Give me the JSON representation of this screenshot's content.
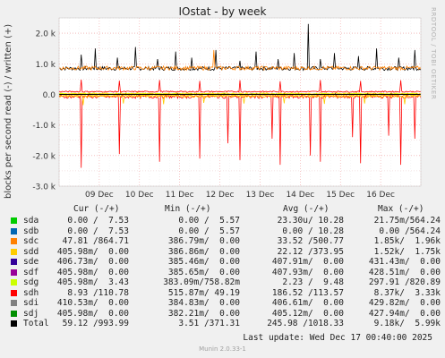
{
  "title": "IOstat - by week",
  "side_text": "RRDTOOL / TOBI OETIKER",
  "footer": {
    "last_update": "Last update:  Wed Dec 17 00:40:00 2025",
    "munin": "Munin 2.0.33-1"
  },
  "legend": {
    "headers": [
      "Cur (-/+)",
      "Min (-/+)",
      "Avg (-/+)",
      "Max (-/+)"
    ],
    "rows": [
      {
        "name": "sda",
        "color": "#00cc00",
        "cur": "0.00 /  7.53",
        "min": "0.00 /  5.57",
        "avg": "23.30u/ 10.28",
        "max": "21.75m/564.24"
      },
      {
        "name": "sdb",
        "color": "#0066b3",
        "cur": "0.00 /  7.53",
        "min": "0.00 /  5.57",
        "avg": "0.00 / 10.28",
        "max": "0.00 /564.24"
      },
      {
        "name": "sdc",
        "color": "#ff8000",
        "cur": "47.81 /864.71",
        "min": "386.79m/  0.00",
        "avg": "33.52 /500.77",
        "max": "1.85k/  1.96k"
      },
      {
        "name": "sdd",
        "color": "#ffcc00",
        "cur": "405.98m/  0.00",
        "min": "386.86m/  0.00",
        "avg": "22.12 /373.95",
        "max": "1.52k/  1.75k"
      },
      {
        "name": "sde",
        "color": "#330099",
        "cur": "406.73m/  0.00",
        "min": "385.46m/  0.00",
        "avg": "407.91m/  0.00",
        "max": "431.43m/  0.00"
      },
      {
        "name": "sdf",
        "color": "#990099",
        "cur": "405.98m/  0.00",
        "min": "385.65m/  0.00",
        "avg": "407.93m/  0.00",
        "max": "428.51m/  0.00"
      },
      {
        "name": "sdg",
        "color": "#ccff00",
        "cur": "405.98m/  3.43",
        "min": "383.09m/758.82m",
        "avg": "2.23 /  9.48",
        "max": "297.91 /820.89"
      },
      {
        "name": "sdh",
        "color": "#ff0000",
        "cur": "8.93 /110.78",
        "min": "515.87m/ 49.19",
        "avg": "186.52 /113.57",
        "max": "8.37k/  3.33k"
      },
      {
        "name": "sdi",
        "color": "#808080",
        "cur": "410.53m/  0.00",
        "min": "384.83m/  0.00",
        "avg": "406.61m/  0.00",
        "max": "429.82m/  0.00"
      },
      {
        "name": "sdj",
        "color": "#008f00",
        "cur": "405.98m/  0.00",
        "min": "382.21m/  0.00",
        "avg": "405.12m/  0.00",
        "max": "427.94m/  0.00"
      },
      {
        "name": "Total",
        "color": "#000000",
        "cur": "59.12 /993.99",
        "min": "3.51 /371.31",
        "avg": "245.98 /1018.33",
        "max": "9.18k/  5.99k"
      }
    ]
  },
  "chart_data": {
    "type": "line",
    "title": "IOstat - by week",
    "ylabel": "blocks per second read (-) / written (+)",
    "ylim": [
      -3000,
      2500
    ],
    "y_ticks": [
      {
        "value": 2000,
        "label": "2.0 k"
      },
      {
        "value": 1000,
        "label": "1.0 k"
      },
      {
        "value": 0,
        "label": "0.0"
      },
      {
        "value": -1000,
        "label": "-1.0 k"
      },
      {
        "value": -2000,
        "label": "-2.0 k"
      },
      {
        "value": -3000,
        "label": "-3.0 k"
      }
    ],
    "x_ticks": [
      "09 Dec",
      "10 Dec",
      "11 Dec",
      "12 Dec",
      "13 Dec",
      "14 Dec",
      "15 Dec",
      "16 Dec"
    ],
    "x_range_days": [
      8.0,
      17.0
    ],
    "grid": true,
    "series": [
      {
        "name": "Total",
        "color": "#000000",
        "write_baseline": 850,
        "write_spikes": [
          [
            8.55,
            1300
          ],
          [
            8.9,
            1500
          ],
          [
            9.45,
            1200
          ],
          [
            9.9,
            1550
          ],
          [
            10.45,
            1150
          ],
          [
            10.9,
            1400
          ],
          [
            11.3,
            1200
          ],
          [
            11.9,
            1450
          ],
          [
            12.5,
            1100
          ],
          [
            12.9,
            1400
          ],
          [
            13.45,
            1150
          ],
          [
            13.85,
            1350
          ],
          [
            14.2,
            2300
          ],
          [
            14.5,
            1150
          ],
          [
            14.85,
            1350
          ],
          [
            15.45,
            1250
          ],
          [
            15.9,
            1500
          ],
          [
            16.45,
            1200
          ],
          [
            16.85,
            1450
          ]
        ],
        "read_baseline": 10
      },
      {
        "name": "sdc",
        "color": "#ff8000",
        "write_baseline": 860,
        "write_spikes": [
          [
            11.85,
            1450
          ]
        ],
        "read_baseline": -40
      },
      {
        "name": "sdh",
        "color": "#ff0000",
        "write_baseline": 90,
        "write_spikes": [
          [
            8.55,
            480
          ],
          [
            9.5,
            450
          ],
          [
            10.5,
            470
          ],
          [
            11.5,
            440
          ],
          [
            12.5,
            460
          ],
          [
            13.5,
            430
          ],
          [
            14.5,
            470
          ],
          [
            15.5,
            440
          ],
          [
            16.5,
            460
          ]
        ],
        "read_baseline": -80,
        "read_spikes": [
          [
            8.55,
            -2400
          ],
          [
            9.5,
            -1950
          ],
          [
            10.5,
            -2200
          ],
          [
            11.5,
            -2100
          ],
          [
            12.2,
            -1600
          ],
          [
            12.5,
            -2150
          ],
          [
            13.3,
            -1450
          ],
          [
            13.5,
            -2300
          ],
          [
            14.25,
            -2000
          ],
          [
            14.5,
            -2200
          ],
          [
            15.3,
            -1400
          ],
          [
            15.5,
            -2250
          ],
          [
            16.2,
            -1350
          ],
          [
            16.5,
            -2300
          ],
          [
            16.85,
            -1450
          ]
        ]
      },
      {
        "name": "sdd",
        "color": "#ffcc00",
        "write_baseline": 30,
        "read_baseline": -60,
        "read_spikes": [
          [
            8.6,
            -350
          ],
          [
            9.6,
            -300
          ],
          [
            10.6,
            -320
          ],
          [
            11.6,
            -280
          ],
          [
            12.6,
            -300
          ],
          [
            13.6,
            -290
          ],
          [
            14.6,
            -310
          ],
          [
            15.6,
            -300
          ],
          [
            16.6,
            -320
          ]
        ]
      },
      {
        "name": "sdg",
        "color": "#ccff00",
        "write_baseline": 10,
        "read_baseline": -5
      }
    ]
  }
}
